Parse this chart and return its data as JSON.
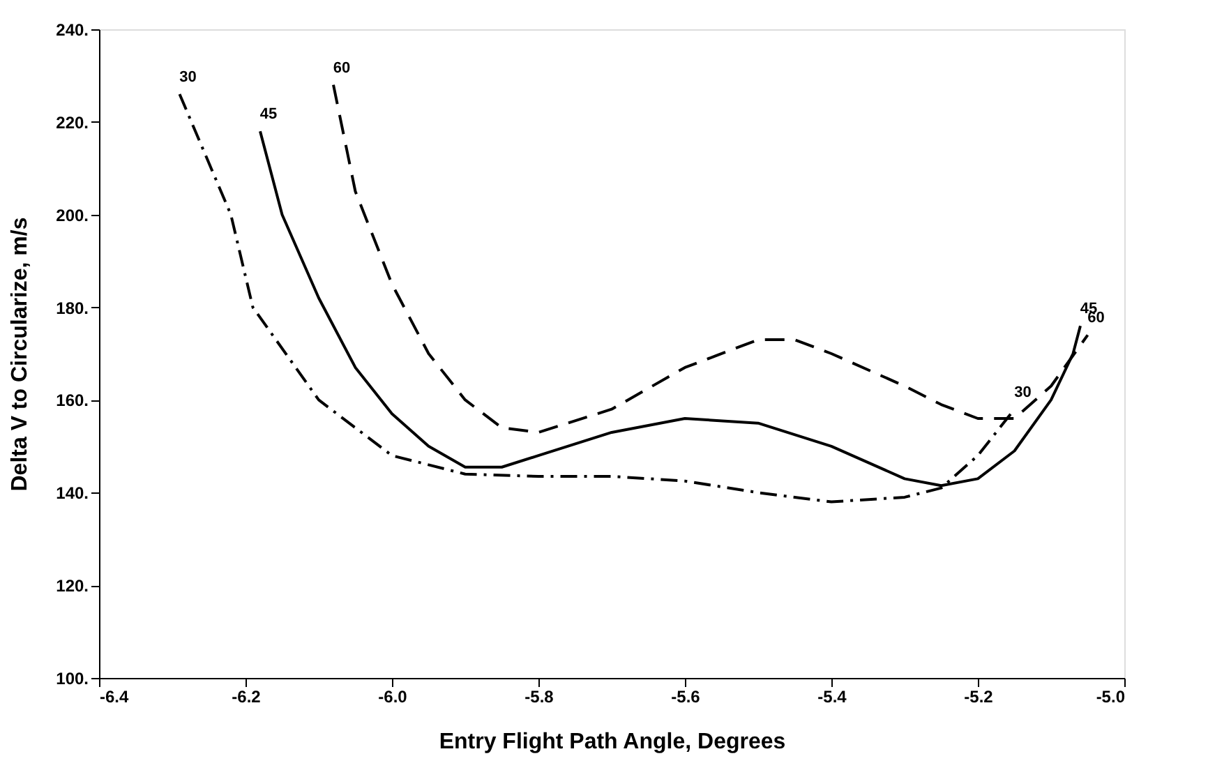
{
  "chart_data": {
    "type": "line",
    "xlabel": "Entry Flight Path Angle, Degrees",
    "ylabel": "Delta V to Circularize, m/s",
    "xlim": [
      -6.4,
      -5.0
    ],
    "xticks": [
      {
        "value": -6.4,
        "label": "-6.4"
      },
      {
        "value": -6.2,
        "label": "-6.2"
      },
      {
        "value": -6.0,
        "label": "-6.0"
      },
      {
        "value": -5.8,
        "label": "-5.8"
      },
      {
        "value": -5.6,
        "label": "-5.6"
      },
      {
        "value": -5.4,
        "label": "-5.4"
      },
      {
        "value": -5.2,
        "label": "-5.2"
      },
      {
        "value": -5.0,
        "label": "-5.0"
      }
    ],
    "ylim": [
      100,
      240
    ],
    "yticks": [
      {
        "value": 100,
        "label": "100."
      },
      {
        "value": 120,
        "label": "120."
      },
      {
        "value": 140,
        "label": "140."
      },
      {
        "value": 160,
        "label": "160."
      },
      {
        "value": 180,
        "label": "180."
      },
      {
        "value": 200,
        "label": "200."
      },
      {
        "value": 220,
        "label": "220."
      },
      {
        "value": 240,
        "label": "240."
      }
    ],
    "grid": false,
    "legend": false,
    "marker": "none",
    "series": [
      {
        "name": "30",
        "color": "#000000",
        "line_style": "dashdot",
        "x": [
          -6.29,
          -6.22,
          -6.19,
          -6.1,
          -6.0,
          -5.9,
          -5.8,
          -5.7,
          -5.6,
          -5.5,
          -5.4,
          -5.3,
          -5.25,
          -5.2,
          -5.15
        ],
        "values": [
          226,
          200,
          180,
          160,
          148,
          144,
          143.5,
          143.5,
          142.5,
          140,
          138,
          139,
          141,
          148,
          158
        ]
      },
      {
        "name": "45",
        "color": "#000000",
        "line_style": "solid",
        "x": [
          -6.18,
          -6.15,
          -6.1,
          -6.05,
          -6.0,
          -5.95,
          -5.9,
          -5.85,
          -5.8,
          -5.7,
          -5.6,
          -5.5,
          -5.4,
          -5.3,
          -5.25,
          -5.2,
          -5.15,
          -5.1,
          -5.07,
          -5.06
        ],
        "values": [
          218,
          200,
          182,
          167,
          157,
          150,
          145.5,
          145.5,
          148,
          153,
          156,
          155,
          150,
          143,
          141.5,
          143,
          149,
          160,
          170,
          176
        ]
      },
      {
        "name": "60",
        "color": "#000000",
        "line_style": "dashed",
        "x": [
          -6.08,
          -6.05,
          -6.0,
          -5.95,
          -5.9,
          -5.85,
          -5.8,
          -5.7,
          -5.6,
          -5.5,
          -5.45,
          -5.4,
          -5.3,
          -5.25,
          -5.2,
          -5.15,
          -5.1,
          -5.05
        ],
        "values": [
          228,
          205,
          185,
          170,
          160,
          154,
          153,
          158,
          167,
          173,
          173,
          170,
          163,
          159,
          156,
          156,
          163,
          174
        ]
      }
    ]
  }
}
